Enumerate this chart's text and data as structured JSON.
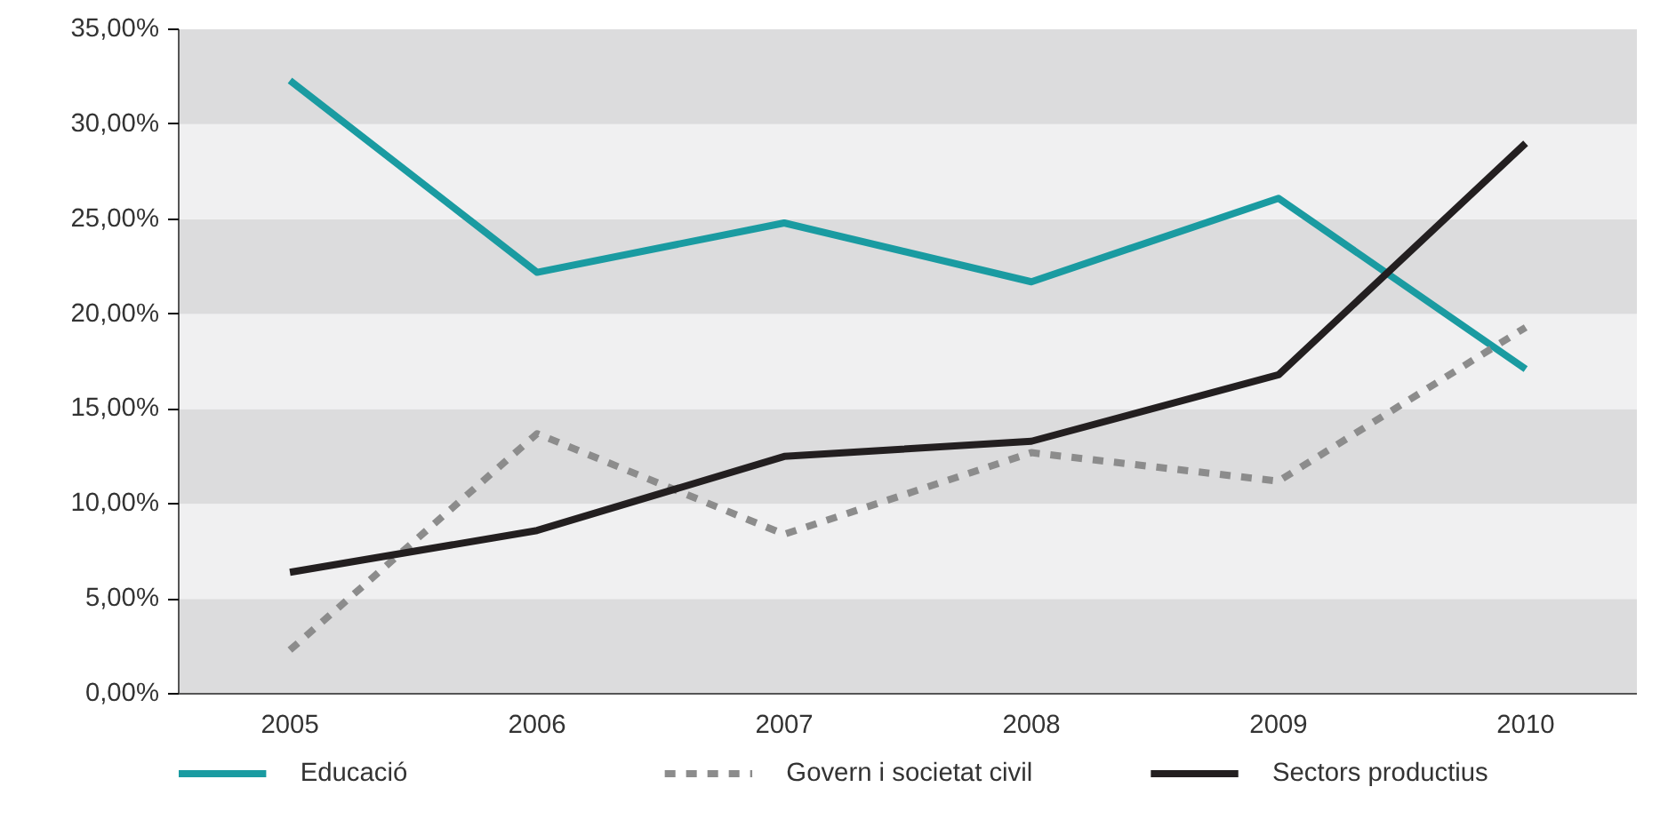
{
  "chart_data": {
    "type": "line",
    "categories": [
      "2005",
      "2006",
      "2007",
      "2008",
      "2009",
      "2010"
    ],
    "series": [
      {
        "name": "Educació",
        "color": "#1a9ba1",
        "values": [
          32.3,
          22.2,
          24.8,
          21.7,
          26.1,
          17.1
        ],
        "line_style": "solid"
      },
      {
        "name": "Govern i societat civil",
        "color": "#8c8c8c",
        "values": [
          2.3,
          13.7,
          8.4,
          12.7,
          11.2,
          19.3
        ],
        "line_style": "dashed"
      },
      {
        "name": "Sectors productius",
        "color": "#231f20",
        "values": [
          6.4,
          8.6,
          12.5,
          13.3,
          16.8,
          29.0
        ],
        "line_style": "solid"
      }
    ],
    "ylim": [
      0,
      35
    ],
    "yticks": [
      {
        "value": 0,
        "label": "0,00%"
      },
      {
        "value": 5,
        "label": "5,00%"
      },
      {
        "value": 10,
        "label": "10,00%"
      },
      {
        "value": 15,
        "label": "15,00%"
      },
      {
        "value": 20,
        "label": "20,00%"
      },
      {
        "value": 25,
        "label": "25,00%"
      },
      {
        "value": 30,
        "label": "30,00%"
      },
      {
        "value": 35,
        "label": "35,00%"
      }
    ],
    "bands": [
      {
        "axis": "y",
        "from": 0,
        "to": 5,
        "color": "#dcdcdd"
      },
      {
        "axis": "y",
        "from": 5,
        "to": 10,
        "color": "#f0f0f1"
      },
      {
        "axis": "y",
        "from": 10,
        "to": 15,
        "color": "#dcdcdd"
      },
      {
        "axis": "y",
        "from": 15,
        "to": 20,
        "color": "#f0f0f1"
      },
      {
        "axis": "y",
        "from": 20,
        "to": 25,
        "color": "#dcdcdd"
      },
      {
        "axis": "y",
        "from": 25,
        "to": 30,
        "color": "#f0f0f1"
      },
      {
        "axis": "y",
        "from": 30,
        "to": 35,
        "color": "#dcdcdd"
      }
    ],
    "legend": "bottom"
  }
}
